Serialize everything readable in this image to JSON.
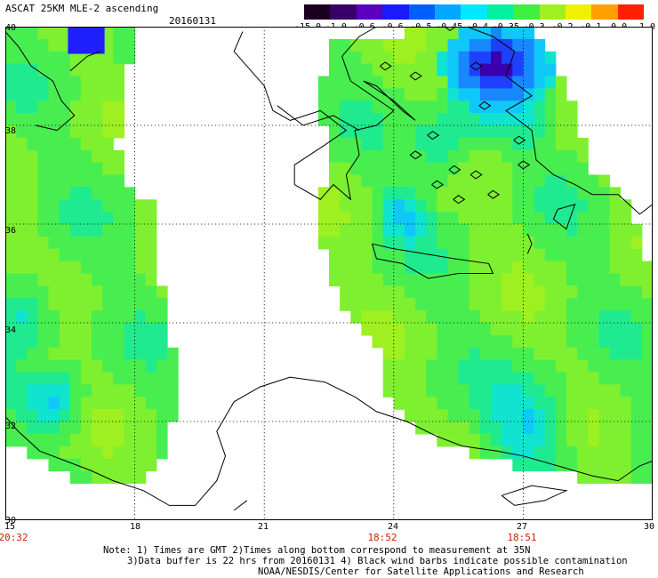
{
  "header": {
    "title": "ASCAT 25KM MLE-2 ascending",
    "date": "20160131"
  },
  "colorbar": {
    "labels": [
      "-15.0",
      "-1.0",
      "-0.6",
      "-0.6",
      "-0.5",
      "-0.45",
      "-0.4",
      "-0.35",
      "-0.3",
      "-0.2",
      "-0.1",
      "0.0",
      "1.0"
    ],
    "colors": [
      "#1a0020",
      "#3a006a",
      "#5a00c0",
      "#1a1aff",
      "#0060ff",
      "#00a8ff",
      "#00e8ff",
      "#00f0a0",
      "#40f040",
      "#a0f020",
      "#f0f000",
      "#ffa000",
      "#ff2000"
    ]
  },
  "map": {
    "lat_labels": [
      "40",
      "38",
      "36",
      "34",
      "32",
      "30"
    ],
    "lon_labels": [
      "15",
      "18",
      "21",
      "24",
      "27",
      "30"
    ],
    "time_labels": [
      "20:32",
      "18:52",
      "18:51"
    ]
  },
  "footer": {
    "note1": "Note: 1) Times are GMT 2)Times along bottom correspond to measurement at 35N",
    "note2": "3)Data buffer is 22 hrs from 20160131 4) Black wind barbs indicate possible contamination",
    "note3": "NOAA/NESDIS/Center for Satellite Applications and Research"
  }
}
